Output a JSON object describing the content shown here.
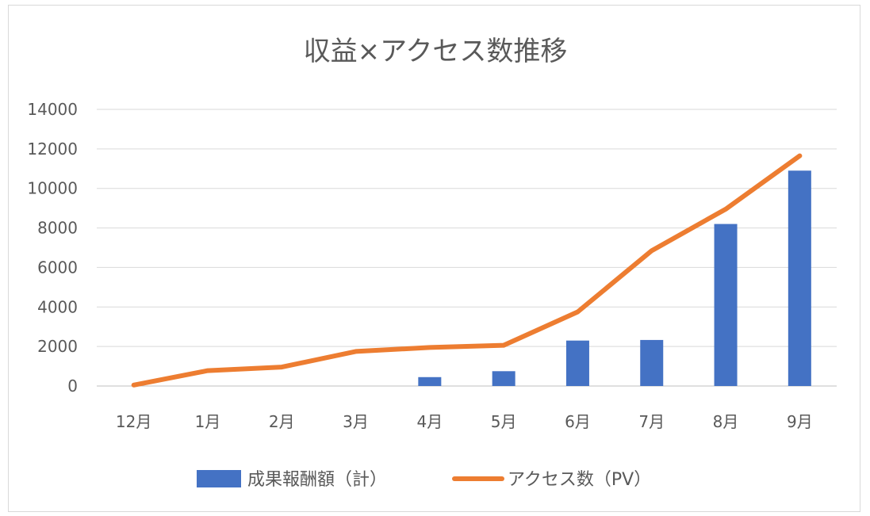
{
  "chart_data": {
    "type": "bar",
    "title": "収益×アクセス数推移",
    "categories": [
      "12月",
      "1月",
      "2月",
      "3月",
      "4月",
      "5月",
      "6月",
      "7月",
      "8月",
      "9月"
    ],
    "series": [
      {
        "name": "成果報酬額（計）",
        "type": "bar",
        "color": "#4472c4",
        "values": [
          0,
          0,
          0,
          0,
          450,
          750,
          2300,
          2330,
          8200,
          10900
        ]
      },
      {
        "name": "アクセス数（PV）",
        "type": "line",
        "color": "#ed7d31",
        "values": [
          50,
          780,
          960,
          1750,
          1950,
          2060,
          3750,
          6850,
          8950,
          11650
        ]
      }
    ],
    "y_ticks": [
      "0",
      "2000",
      "4000",
      "6000",
      "8000",
      "10000",
      "12000",
      "14000"
    ],
    "ylim": [
      0,
      14000
    ],
    "grid": true,
    "legend": "bottom"
  }
}
